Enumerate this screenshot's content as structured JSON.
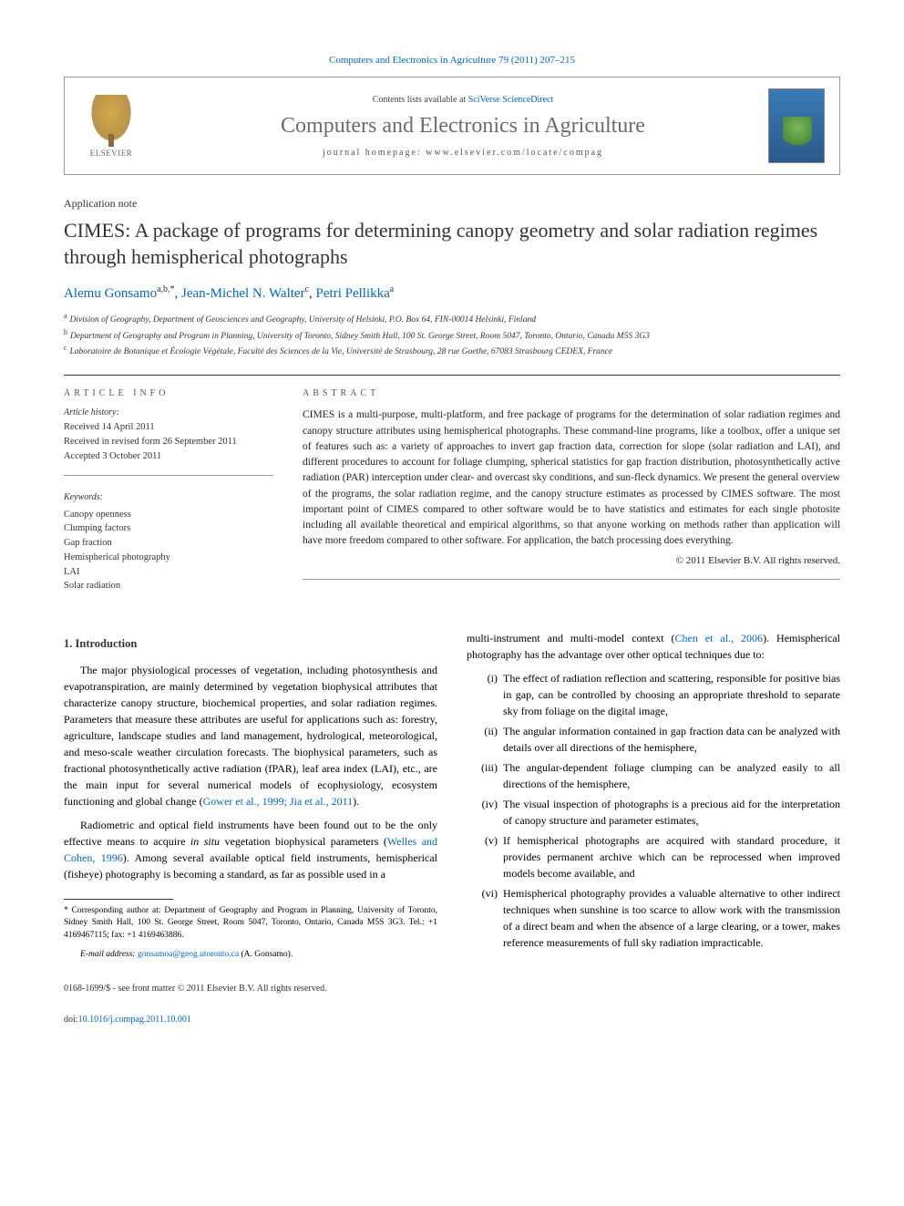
{
  "journal_ref": {
    "journal": "Computers and Electronics in Agriculture",
    "volume_pages": "79 (2011) 207–215"
  },
  "header": {
    "contents_text": "Contents lists available at",
    "contents_link": "SciVerse ScienceDirect",
    "journal_name": "Computers and Electronics in Agriculture",
    "homepage_label": "journal homepage:",
    "homepage_url": "www.elsevier.com/locate/compag",
    "publisher": "ELSEVIER"
  },
  "article": {
    "type": "Application note",
    "title": "CIMES: A package of programs for determining canopy geometry and solar radiation regimes through hemispherical photographs",
    "authors": [
      {
        "name": "Alemu Gonsamo",
        "affil": "a,b,",
        "corr": "*"
      },
      {
        "name": "Jean-Michel N. Walter",
        "affil": "c",
        "corr": ""
      },
      {
        "name": "Petri Pellikka",
        "affil": "a",
        "corr": ""
      }
    ],
    "affiliations": [
      {
        "key": "a",
        "text": "Division of Geography, Department of Geosciences and Geography, University of Helsinki, P.O. Box 64, FIN-00014 Helsinki, Finland"
      },
      {
        "key": "b",
        "text": "Department of Geography and Program in Planning, University of Toronto, Sidney Smith Hall, 100 St. George Street, Room 5047, Toronto, Ontario, Canada M5S 3G3"
      },
      {
        "key": "c",
        "text": "Laboratoire de Botanique et Écologie Végétale, Faculté des Sciences de la Vie, Université de Strasbourg, 28 rue Goethe, 67083 Strasbourg CEDEX, France"
      }
    ]
  },
  "info": {
    "header": "ARTICLE INFO",
    "history_label": "Article history:",
    "history": [
      "Received 14 April 2011",
      "Received in revised form 26 September 2011",
      "Accepted 3 October 2011"
    ],
    "keywords_label": "Keywords:",
    "keywords": [
      "Canopy openness",
      "Clumping factors",
      "Gap fraction",
      "Hemispherical photography",
      "LAI",
      "Solar radiation"
    ]
  },
  "abstract": {
    "header": "ABSTRACT",
    "text": "CIMES is a multi-purpose, multi-platform, and free package of programs for the determination of solar radiation regimes and canopy structure attributes using hemispherical photographs. These command-line programs, like a toolbox, offer a unique set of features such as: a variety of approaches to invert gap fraction data, correction for slope (solar radiation and LAI), and different procedures to account for foliage clumping, spherical statistics for gap fraction distribution, photosynthetically active radiation (PAR) interception under clear- and overcast sky conditions, and sun-fleck dynamics. We present the general overview of the programs, the solar radiation regime, and the canopy structure estimates as processed by CIMES software. The most important point of CIMES compared to other software would be to have statistics and estimates for each single photosite including all available theoretical and empirical algorithms, so that anyone working on methods rather than application will have more freedom compared to other software. For application, the batch processing does everything.",
    "copyright": "© 2011 Elsevier B.V. All rights reserved."
  },
  "body": {
    "intro_title": "1. Introduction",
    "p1": "The major physiological processes of vegetation, including photosynthesis and evapotranspiration, are mainly determined by vegetation biophysical attributes that characterize canopy structure, biochemical properties, and solar radiation regimes. Parameters that measure these attributes are useful for applications such as: forestry, agriculture, landscape studies and land management, hydrological, meteorological, and meso-scale weather circulation forecasts. The biophysical parameters, such as fractional photosynthetically active radiation (fPAR), leaf area index (LAI), etc., are the main input for several numerical models of ecophysiology, ecosystem functioning and global change (",
    "p1_cite": "Gower et al., 1999; Jia et al., 2011",
    "p1_end": ").",
    "p2_a": "Radiometric and optical field instruments have been found out to be the only effective means to acquire ",
    "p2_insitu": "in situ",
    "p2_b": " vegetation biophysical parameters (",
    "p2_cite1": "Welles and Cohen, 1996",
    "p2_c": "). Among several available optical field instruments, hemispherical (fisheye) photography is becoming a standard, as far as possible used in a",
    "p3_a": "multi-instrument and multi-model context (",
    "p3_cite": "Chen et al., 2006",
    "p3_b": "). Hemispherical photography has the advantage over other optical techniques due to:",
    "list": [
      {
        "marker": "(i)",
        "text": "The effect of radiation reflection and scattering, responsible for positive bias in gap, can be controlled by choosing an appropriate threshold to separate sky from foliage on the digital image,"
      },
      {
        "marker": "(ii)",
        "text": "The angular information contained in gap fraction data can be analyzed with details over all directions of the hemisphere,"
      },
      {
        "marker": "(iii)",
        "text": "The angular-dependent foliage clumping can be analyzed easily to all directions of the hemisphere,"
      },
      {
        "marker": "(iv)",
        "text": "The visual inspection of photographs is a precious aid for the interpretation of canopy structure and parameter estimates,"
      },
      {
        "marker": "(v)",
        "text": "If hemispherical photographs are acquired with standard procedure, it provides permanent archive which can be reprocessed when improved models become available, and"
      },
      {
        "marker": "(vi)",
        "text": "Hemispherical photography provides a valuable alternative to other indirect techniques when sunshine is too scarce to allow work with the transmission of a direct beam and when the absence of a large clearing, or a tower, makes reference measurements of full sky radiation impracticable."
      }
    ]
  },
  "footnote": {
    "corr": "* Corresponding author at: Department of Geography and Program in Planning, University of Toronto, Sidney Smith Hall, 100 St. George Street, Room 5047, Toronto, Ontario, Canada M5S 3G3. Tel.: +1 4169467115; fax: +1 4169463886.",
    "email_label": "E-mail address:",
    "email": "gonsamoa@geog.utoronto.ca",
    "email_name": "(A. Gonsamo)."
  },
  "footer": {
    "issn": "0168-1699/$ - see front matter © 2011 Elsevier B.V. All rights reserved.",
    "doi_label": "doi:",
    "doi": "10.1016/j.compag.2011.10.001"
  },
  "colors": {
    "link": "#0066cc",
    "text": "#000000",
    "gray": "#6b6b6b",
    "border": "#999999"
  }
}
